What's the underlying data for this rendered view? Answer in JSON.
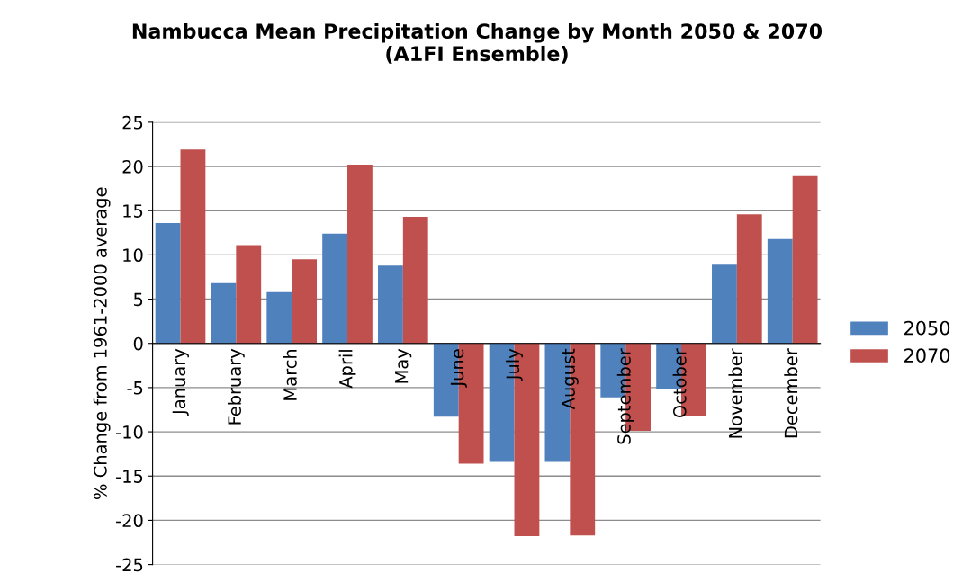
{
  "chart_data": {
    "type": "bar",
    "title": "Nambucca Mean Precipitation Change by Month 2050 & 2070\n(A1FI Ensemble)",
    "ylabel": "% Change from 1961-2000 average",
    "categories": [
      "January",
      "February",
      "March",
      "April",
      "May",
      "June",
      "July",
      "August",
      "September",
      "October",
      "November",
      "December"
    ],
    "series": [
      {
        "name": "2050",
        "color": "#4f81bd",
        "values": [
          13.6,
          6.8,
          5.8,
          12.4,
          8.8,
          -8.3,
          -13.4,
          -13.4,
          -6.1,
          -5.1,
          8.9,
          11.8
        ]
      },
      {
        "name": "2070",
        "color": "#c0504d",
        "values": [
          21.9,
          11.1,
          9.5,
          20.2,
          14.3,
          -13.6,
          -21.8,
          -21.7,
          -9.9,
          -8.2,
          14.6,
          18.9
        ]
      }
    ],
    "ylim": [
      -25,
      25
    ],
    "yticks": [
      -25,
      -20,
      -15,
      -10,
      -5,
      0,
      5,
      10,
      15,
      20,
      25
    ],
    "grid": "y",
    "legend": "right"
  }
}
